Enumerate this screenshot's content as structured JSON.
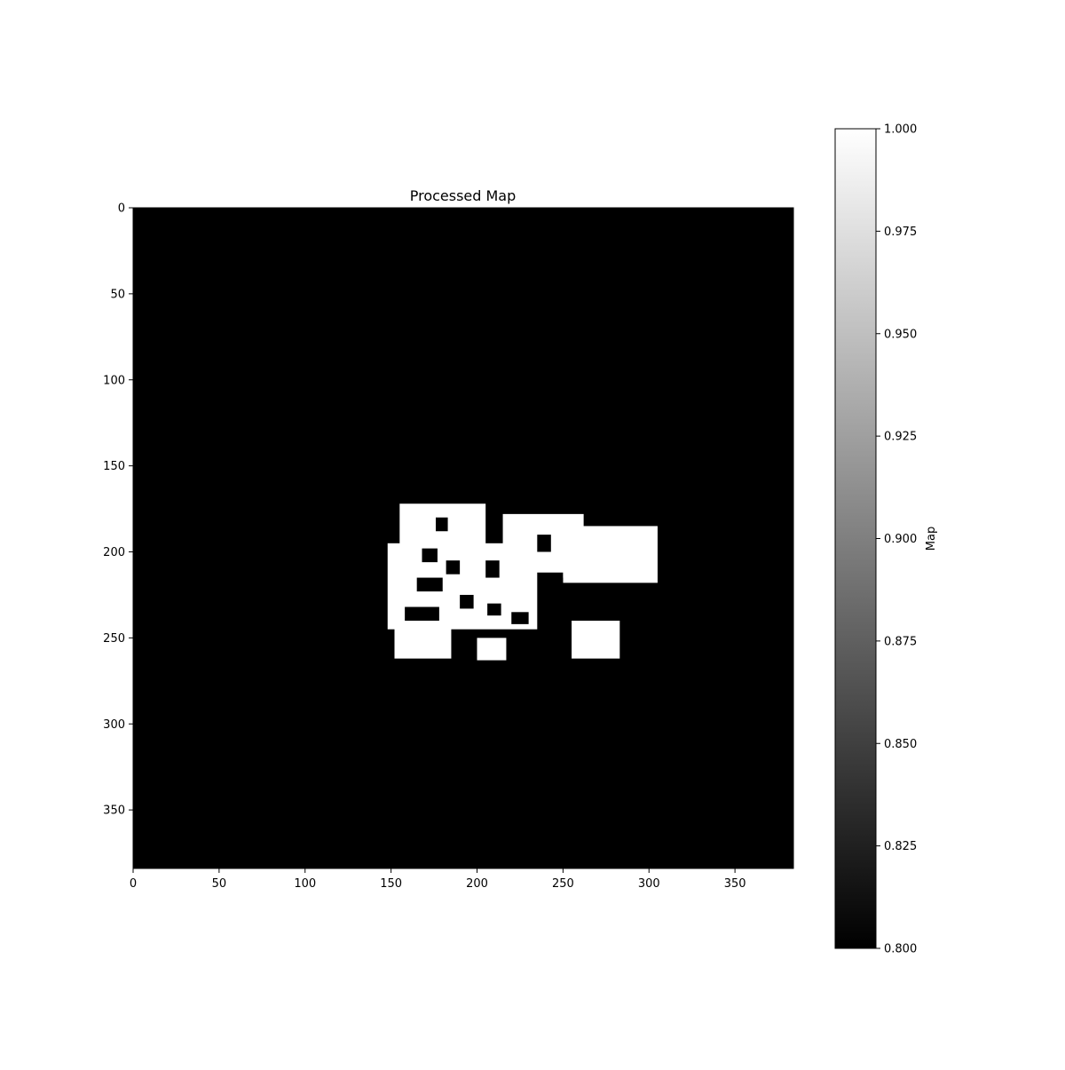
{
  "chart_data": {
    "type": "heatmap",
    "title": "Processed Map",
    "xlabel": "",
    "ylabel": "",
    "xlim": [
      0,
      384
    ],
    "ylim": [
      384,
      0
    ],
    "x_ticks": [
      0,
      50,
      100,
      150,
      200,
      250,
      300,
      350
    ],
    "y_ticks": [
      0,
      50,
      100,
      150,
      200,
      250,
      300,
      350
    ],
    "x_tick_labels": [
      "0",
      "50",
      "100",
      "150",
      "200",
      "250",
      "300",
      "350"
    ],
    "y_tick_labels": [
      "0",
      "50",
      "100",
      "150",
      "200",
      "250",
      "300",
      "350"
    ],
    "colormap": "gray",
    "background_value": 0.8,
    "background_color": "#000000",
    "foreground_value": 1.0,
    "foreground_color": "#ffffff",
    "grid": false,
    "free_regions": [
      {
        "x": [
          148,
          235
        ],
        "y": [
          195,
          245
        ]
      },
      {
        "x": [
          155,
          205
        ],
        "y": [
          172,
          200
        ]
      },
      {
        "x": [
          215,
          262
        ],
        "y": [
          178,
          212
        ]
      },
      {
        "x": [
          250,
          305
        ],
        "y": [
          185,
          218
        ]
      },
      {
        "x": [
          152,
          185
        ],
        "y": [
          240,
          262
        ]
      },
      {
        "x": [
          200,
          217
        ],
        "y": [
          250,
          263
        ]
      },
      {
        "x": [
          255,
          283
        ],
        "y": [
          240,
          262
        ]
      }
    ],
    "obstacle_regions": [
      {
        "x": [
          176,
          183
        ],
        "y": [
          180,
          188
        ]
      },
      {
        "x": [
          168,
          177
        ],
        "y": [
          198,
          206
        ]
      },
      {
        "x": [
          182,
          190
        ],
        "y": [
          205,
          213
        ]
      },
      {
        "x": [
          165,
          180
        ],
        "y": [
          215,
          223
        ]
      },
      {
        "x": [
          205,
          213
        ],
        "y": [
          205,
          215
        ]
      },
      {
        "x": [
          206,
          214
        ],
        "y": [
          230,
          237
        ]
      },
      {
        "x": [
          158,
          178
        ],
        "y": [
          232,
          240
        ]
      },
      {
        "x": [
          190,
          198
        ],
        "y": [
          225,
          233
        ]
      },
      {
        "x": [
          235,
          243
        ],
        "y": [
          190,
          200
        ]
      },
      {
        "x": [
          240,
          250
        ],
        "y": [
          215,
          222
        ]
      },
      {
        "x": [
          220,
          230
        ],
        "y": [
          235,
          242
        ]
      }
    ],
    "colorbar": {
      "label": "Map",
      "min": 0.8,
      "max": 1.0,
      "ticks": [
        0.8,
        0.825,
        0.85,
        0.875,
        0.9,
        0.925,
        0.95,
        0.975,
        1.0
      ],
      "tick_labels": [
        "0.800",
        "0.825",
        "0.850",
        "0.875",
        "0.900",
        "0.925",
        "0.950",
        "0.975",
        "1.000"
      ]
    }
  }
}
